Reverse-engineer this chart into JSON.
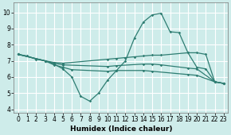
{
  "bg_color": "#ceecea",
  "grid_color": "#ffffff",
  "line_color": "#2e7d72",
  "xlabel": "Humidex (Indice chaleur)",
  "xlim": [
    -0.5,
    23.5
  ],
  "ylim": [
    3.8,
    10.6
  ],
  "xticks": [
    0,
    1,
    2,
    3,
    4,
    5,
    6,
    7,
    8,
    9,
    10,
    11,
    12,
    13,
    14,
    15,
    16,
    17,
    18,
    19,
    20,
    21,
    22,
    23
  ],
  "yticks": [
    4,
    5,
    6,
    7,
    8,
    9,
    10
  ],
  "xlabel_fontsize": 6.5,
  "tick_fontsize": 5.5,
  "line1_x": [
    0,
    1,
    2,
    3,
    4,
    5,
    6,
    7,
    8,
    9,
    10,
    11,
    12,
    13,
    14,
    15,
    16,
    17,
    18,
    19,
    20,
    21,
    22,
    23
  ],
  "line1_y": [
    7.4,
    7.3,
    7.1,
    7.0,
    6.8,
    6.5,
    6.0,
    4.8,
    4.5,
    5.0,
    5.8,
    6.4,
    7.0,
    8.4,
    9.4,
    9.85,
    9.95,
    8.8,
    8.75,
    7.5,
    6.6,
    6.5,
    5.7,
    5.6
  ],
  "line2_x": [
    0,
    3,
    4,
    5,
    10,
    11,
    12,
    13,
    14,
    15,
    16,
    19,
    20,
    21,
    22,
    23
  ],
  "line2_y": [
    7.4,
    7.0,
    6.9,
    6.85,
    7.1,
    7.15,
    7.2,
    7.25,
    7.3,
    7.35,
    7.35,
    7.5,
    7.5,
    7.4,
    5.7,
    5.6
  ],
  "line3_x": [
    0,
    3,
    4,
    5,
    10,
    11,
    14,
    15,
    16,
    19,
    20,
    22,
    23
  ],
  "line3_y": [
    7.4,
    7.0,
    6.85,
    6.75,
    6.65,
    6.7,
    6.8,
    6.8,
    6.75,
    6.55,
    6.5,
    5.7,
    5.6
  ],
  "line4_x": [
    0,
    3,
    4,
    5,
    6,
    10,
    11,
    14,
    15,
    19,
    20,
    22,
    23
  ],
  "line4_y": [
    7.4,
    7.0,
    6.75,
    6.6,
    6.45,
    6.35,
    6.4,
    6.4,
    6.35,
    6.15,
    6.1,
    5.7,
    5.6
  ]
}
